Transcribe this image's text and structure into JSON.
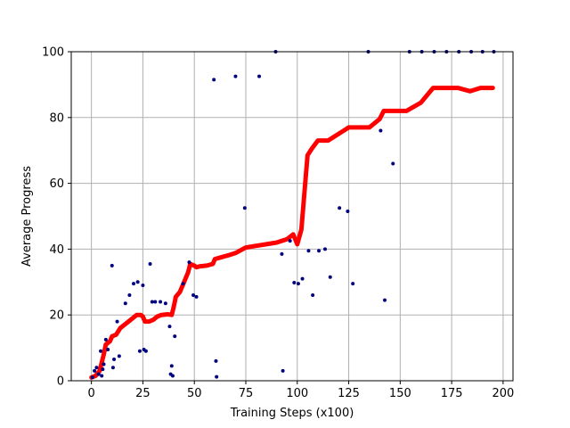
{
  "chart_data": {
    "type": "scatter",
    "title": "",
    "xlabel": "Training Steps (x100)",
    "ylabel": "Average Progress",
    "xlim": [
      -9.8,
      204.8
    ],
    "ylim": [
      0,
      100
    ],
    "x_ticks": [
      0,
      25,
      50,
      75,
      100,
      125,
      150,
      175,
      200
    ],
    "y_ticks": [
      0,
      20,
      40,
      60,
      80,
      100
    ],
    "grid": true,
    "legend": "none",
    "colors": {
      "points": "#00007f",
      "line": "#ff0000",
      "grid": "#b0b0b0"
    },
    "series": [
      {
        "type": "scatter",
        "points": [
          [
            0.5,
            1.0
          ],
          [
            1.5,
            3.0
          ],
          [
            2.5,
            4.0
          ],
          [
            3.5,
            2.0
          ],
          [
            4.5,
            9.0
          ],
          [
            5.0,
            1.5
          ],
          [
            5.5,
            3.5
          ],
          [
            6.0,
            5.0
          ],
          [
            7.0,
            12.5
          ],
          [
            8.0,
            9.5
          ],
          [
            10.0,
            35.0
          ],
          [
            10.5,
            4.0
          ],
          [
            11.0,
            6.5
          ],
          [
            12.5,
            18.0
          ],
          [
            13.5,
            7.5
          ],
          [
            16.5,
            23.5
          ],
          [
            18.5,
            26.0
          ],
          [
            20.5,
            29.5
          ],
          [
            22.5,
            30.0
          ],
          [
            23.5,
            9.0
          ],
          [
            25.0,
            29.0
          ],
          [
            25.5,
            9.5
          ],
          [
            26.5,
            9.0
          ],
          [
            28.5,
            35.5
          ],
          [
            29.5,
            24.0
          ],
          [
            31.0,
            24.0
          ],
          [
            33.5,
            24.0
          ],
          [
            36.0,
            23.5
          ],
          [
            38.0,
            16.5
          ],
          [
            38.5,
            2.0
          ],
          [
            39.0,
            4.5
          ],
          [
            39.5,
            1.5
          ],
          [
            40.5,
            13.5
          ],
          [
            44.5,
            29.5
          ],
          [
            47.5,
            36.0
          ],
          [
            49.5,
            26.0
          ],
          [
            51.0,
            25.5
          ],
          [
            59.5,
            91.5
          ],
          [
            60.5,
            6.0
          ],
          [
            60.8,
            1.2
          ],
          [
            70.0,
            92.5
          ],
          [
            74.5,
            52.5
          ],
          [
            81.5,
            92.5
          ],
          [
            89.5,
            100.0
          ],
          [
            92.5,
            38.5
          ],
          [
            93.0,
            3.0
          ],
          [
            96.5,
            42.5
          ],
          [
            98.5,
            29.8
          ],
          [
            100.5,
            29.5
          ],
          [
            102.5,
            31.0
          ],
          [
            105.5,
            39.5
          ],
          [
            107.5,
            26.0
          ],
          [
            110.5,
            39.5
          ],
          [
            113.5,
            40.0
          ],
          [
            116.0,
            31.5
          ],
          [
            120.5,
            52.5
          ],
          [
            124.5,
            51.5
          ],
          [
            127.0,
            29.5
          ],
          [
            134.5,
            100.0
          ],
          [
            140.5,
            76.0
          ],
          [
            142.5,
            24.5
          ],
          [
            146.5,
            66.0
          ],
          [
            154.5,
            100.0
          ],
          [
            160.5,
            100.0
          ],
          [
            166.5,
            100.0
          ],
          [
            172.5,
            100.0
          ],
          [
            178.5,
            100.0
          ],
          [
            184.5,
            100.0
          ],
          [
            190.0,
            100.0
          ],
          [
            195.5,
            100.0
          ]
        ]
      },
      {
        "type": "line",
        "points": [
          [
            0,
            1.0
          ],
          [
            2,
            1.5
          ],
          [
            4,
            3.0
          ],
          [
            6,
            8.0
          ],
          [
            7,
            11.0
          ],
          [
            9,
            12.0
          ],
          [
            10,
            13.5
          ],
          [
            12,
            14.0
          ],
          [
            14,
            16.0
          ],
          [
            16,
            17.0
          ],
          [
            18,
            18.0
          ],
          [
            20,
            19.0
          ],
          [
            22,
            20.0
          ],
          [
            24,
            20.0
          ],
          [
            25,
            19.5
          ],
          [
            26,
            18.0
          ],
          [
            28,
            18.0
          ],
          [
            30,
            18.5
          ],
          [
            32,
            19.5
          ],
          [
            34,
            20.0
          ],
          [
            37,
            20.2
          ],
          [
            39,
            20.0
          ],
          [
            40,
            22.5
          ],
          [
            41,
            25.5
          ],
          [
            43,
            27.0
          ],
          [
            45,
            30.0
          ],
          [
            47,
            33.0
          ],
          [
            48,
            35.5
          ],
          [
            50,
            35.0
          ],
          [
            51,
            34.5
          ],
          [
            53,
            34.8
          ],
          [
            56,
            35.0
          ],
          [
            59,
            35.5
          ],
          [
            60,
            37.0
          ],
          [
            63,
            37.5
          ],
          [
            67,
            38.2
          ],
          [
            70,
            38.8
          ],
          [
            75,
            40.5
          ],
          [
            80,
            41.0
          ],
          [
            85,
            41.5
          ],
          [
            90,
            42.0
          ],
          [
            95,
            43.0
          ],
          [
            98,
            44.5
          ],
          [
            100,
            41.5
          ],
          [
            102,
            46.0
          ],
          [
            105,
            68.5
          ],
          [
            107,
            70.5
          ],
          [
            110,
            73.0
          ],
          [
            115,
            73.0
          ],
          [
            120,
            75.0
          ],
          [
            125,
            77.0
          ],
          [
            130,
            77.0
          ],
          [
            135,
            77.0
          ],
          [
            140,
            79.5
          ],
          [
            142,
            82.0
          ],
          [
            147,
            82.0
          ],
          [
            153,
            82.0
          ],
          [
            160,
            84.5
          ],
          [
            166,
            89.0
          ],
          [
            178,
            89.0
          ],
          [
            184,
            88.0
          ],
          [
            189,
            89.0
          ],
          [
            195,
            89.0
          ]
        ]
      }
    ]
  }
}
